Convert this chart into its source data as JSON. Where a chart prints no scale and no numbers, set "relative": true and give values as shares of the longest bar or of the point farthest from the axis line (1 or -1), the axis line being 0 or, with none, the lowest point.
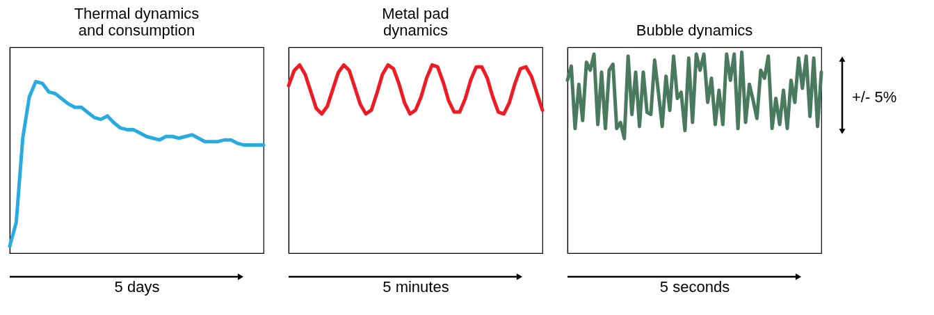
{
  "chart_data": [
    {
      "type": "line",
      "title": "Thermal dynamics and consumption",
      "xlabel": "5 days",
      "relative": true,
      "categories": [
        null,
        null,
        null,
        null,
        null,
        null,
        null,
        null,
        null,
        null,
        null,
        null,
        null,
        null,
        null,
        null,
        null,
        null,
        null,
        null,
        null,
        null,
        null,
        null,
        null,
        null,
        null,
        null,
        null,
        null,
        null,
        null,
        null,
        null,
        null,
        null,
        null,
        null,
        null,
        null
      ],
      "series": [
        {
          "color": "#29abe2",
          "values": [
            0.04,
            0.18,
            0.67,
            0.91,
            1.0,
            0.99,
            0.94,
            0.93,
            0.9,
            0.87,
            0.85,
            0.85,
            0.82,
            0.79,
            0.78,
            0.8,
            0.76,
            0.73,
            0.72,
            0.72,
            0.7,
            0.68,
            0.67,
            0.66,
            0.68,
            0.68,
            0.67,
            0.68,
            0.69,
            0.67,
            0.65,
            0.65,
            0.65,
            0.66,
            0.66,
            0.64,
            0.63,
            0.63,
            0.63,
            0.63
          ]
        }
      ]
    },
    {
      "type": "line",
      "title": "Metal pad dynamics",
      "xlabel": "5 minutes",
      "relative": true,
      "categories": [
        null,
        null,
        null,
        null,
        null,
        null,
        null,
        null,
        null,
        null,
        null,
        null,
        null,
        null,
        null,
        null,
        null,
        null,
        null,
        null,
        null,
        null,
        null,
        null,
        null,
        null,
        null,
        null,
        null,
        null,
        null,
        null,
        null,
        null,
        null,
        null,
        null,
        null,
        null,
        null,
        null,
        null,
        null,
        null,
        null,
        null,
        null
      ],
      "series": [
        {
          "color": "#ed1c24",
          "values": [
            0.89,
            0.97,
            1.0,
            0.95,
            0.86,
            0.77,
            0.74,
            0.78,
            0.87,
            0.96,
            1.0,
            0.97,
            0.88,
            0.79,
            0.74,
            0.76,
            0.85,
            0.95,
            1.0,
            0.98,
            0.9,
            0.8,
            0.74,
            0.76,
            0.83,
            0.93,
            1.0,
            0.99,
            0.91,
            0.81,
            0.75,
            0.75,
            0.82,
            0.92,
            0.99,
            0.99,
            0.93,
            0.83,
            0.75,
            0.74,
            0.8,
            0.9,
            0.98,
            0.99,
            0.94,
            0.85,
            0.76
          ]
        }
      ]
    },
    {
      "type": "line",
      "title": "Bubble dynamics",
      "xlabel": "5 seconds",
      "relative": true,
      "annotations": [
        "+/- 5%"
      ],
      "categories": [
        null,
        null,
        null,
        null,
        null,
        null,
        null,
        null,
        null,
        null,
        null,
        null,
        null,
        null,
        null,
        null,
        null,
        null,
        null,
        null,
        null,
        null,
        null,
        null,
        null,
        null,
        null,
        null,
        null,
        null,
        null,
        null,
        null,
        null,
        null,
        null,
        null,
        null,
        null,
        null,
        null,
        null,
        null,
        null,
        null,
        null,
        null,
        null,
        null,
        null,
        null,
        null,
        null,
        null,
        null,
        null,
        null,
        null,
        null,
        null,
        null,
        null,
        null,
        null,
        null,
        null,
        null,
        null
      ],
      "series": [
        {
          "color": "#4a7a5e",
          "values": [
            0.86,
            0.93,
            0.62,
            0.84,
            0.66,
            0.95,
            0.91,
            0.99,
            0.64,
            0.9,
            0.62,
            0.91,
            0.94,
            0.62,
            0.65,
            0.57,
            0.98,
            0.69,
            0.9,
            0.63,
            0.9,
            0.7,
            0.69,
            0.96,
            0.8,
            0.63,
            0.88,
            0.71,
            0.98,
            0.77,
            0.8,
            0.61,
            0.97,
            0.65,
            0.99,
            0.91,
            0.99,
            0.75,
            0.87,
            0.64,
            0.81,
            0.64,
            0.99,
            0.86,
            0.99,
            0.62,
            1.0,
            0.65,
            0.84,
            0.76,
            0.67,
            0.91,
            0.87,
            0.98,
            0.62,
            0.77,
            0.64,
            0.81,
            0.62,
            0.86,
            0.75,
            0.97,
            0.82,
            0.98,
            0.68,
            0.97,
            0.63,
            0.9
          ]
        }
      ]
    }
  ]
}
